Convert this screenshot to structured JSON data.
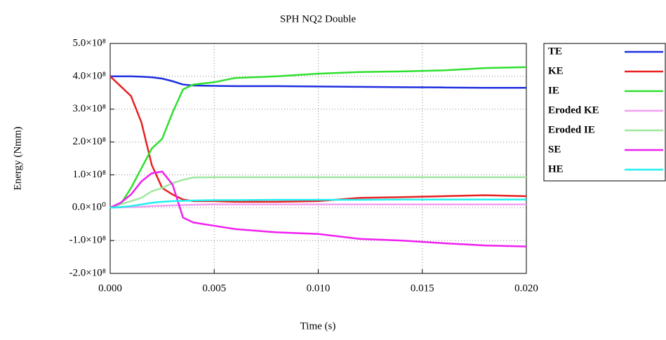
{
  "chart_data": {
    "type": "line",
    "title": "SPH NQ2 Double",
    "x_label": "Time (s)",
    "y_label": "Energy (Nmm)",
    "x": [
      0,
      0.0005,
      0.001,
      0.0015,
      0.002,
      0.0025,
      0.003,
      0.0035,
      0.004,
      0.005,
      0.006,
      0.008,
      0.01,
      0.012,
      0.014,
      0.016,
      0.018,
      0.02
    ],
    "series": [
      {
        "name": "TE",
        "color": "#1f2ee0",
        "values": [
          400000000.0,
          400000000.0,
          400000000.0,
          399000000.0,
          397000000.0,
          393000000.0,
          385000000.0,
          375000000.0,
          372000000.0,
          371000000.0,
          370000000.0,
          370000000.0,
          369000000.0,
          368000000.0,
          367000000.0,
          366000000.0,
          365000000.0,
          365000000.0
        ]
      },
      {
        "name": "KE",
        "color": "#e82020",
        "values": [
          400000000.0,
          370000000.0,
          340000000.0,
          260000000.0,
          130000000.0,
          60000000.0,
          40000000.0,
          25000000.0,
          20000000.0,
          20000000.0,
          18000000.0,
          18000000.0,
          20000000.0,
          30000000.0,
          32000000.0,
          35000000.0,
          38000000.0,
          35000000.0
        ]
      },
      {
        "name": "IE",
        "color": "#2ee02e",
        "values": [
          0,
          10000000.0,
          60000000.0,
          120000000.0,
          180000000.0,
          210000000.0,
          290000000.0,
          360000000.0,
          375000000.0,
          382000000.0,
          395000000.0,
          400000000.0,
          408000000.0,
          413000000.0,
          415000000.0,
          418000000.0,
          425000000.0,
          428000000.0
        ]
      },
      {
        "name": "Eroded KE",
        "color": "#f0a0f0",
        "values": [
          0,
          1000000.0,
          2000000.0,
          3000000.0,
          5000000.0,
          6000000.0,
          7000000.0,
          8000000.0,
          9000000.0,
          10000000.0,
          10000000.0,
          10000000.0,
          10000000.0,
          10000000.0,
          10000000.0,
          10000000.0,
          10000000.0,
          10000000.0
        ]
      },
      {
        "name": "Eroded IE",
        "color": "#a0e8a0",
        "values": [
          0,
          10000000.0,
          20000000.0,
          30000000.0,
          50000000.0,
          60000000.0,
          75000000.0,
          85000000.0,
          92000000.0,
          93000000.0,
          93000000.0,
          93000000.0,
          93000000.0,
          93000000.0,
          93000000.0,
          93000000.0,
          93000000.0,
          93000000.0
        ]
      },
      {
        "name": "SE",
        "color": "#f020f0",
        "values": [
          0,
          15000000.0,
          40000000.0,
          80000000.0,
          105000000.0,
          110000000.0,
          70000000.0,
          -30000000.0,
          -45000000.0,
          -55000000.0,
          -65000000.0,
          -75000000.0,
          -80000000.0,
          -95000000.0,
          -100000000.0,
          -108000000.0,
          -115000000.0,
          -118000000.0
        ]
      },
      {
        "name": "HE",
        "color": "#20f0f0",
        "values": [
          0,
          2000000.0,
          5000000.0,
          10000000.0,
          15000000.0,
          18000000.0,
          20000000.0,
          21000000.0,
          22000000.0,
          23000000.0,
          23000000.0,
          24000000.0,
          24000000.0,
          24000000.0,
          25000000.0,
          25000000.0,
          25000000.0,
          25000000.0
        ]
      }
    ],
    "xlim": [
      0,
      0.02
    ],
    "xticks": [
      {
        "value": 0,
        "label": "0.000"
      },
      {
        "value": 0.005,
        "label": "0.005"
      },
      {
        "value": 0.01,
        "label": "0.010"
      },
      {
        "value": 0.015,
        "label": "0.015"
      },
      {
        "value": 0.02,
        "label": "0.020"
      }
    ],
    "ylim": [
      -200000000.0,
      500000000.0
    ],
    "yticks": [
      {
        "value": -200000000.0,
        "label": "-2.0×10⁸"
      },
      {
        "value": -100000000.0,
        "label": "-1.0×10⁸"
      },
      {
        "value": 0,
        "label": "0.0×10⁰"
      },
      {
        "value": 100000000.0,
        "label": "1.0×10⁸"
      },
      {
        "value": 200000000.0,
        "label": "2.0×10⁸"
      },
      {
        "value": 300000000.0,
        "label": "3.0×10⁸"
      },
      {
        "value": 400000000.0,
        "label": "4.0×10⁸"
      },
      {
        "value": 500000000.0,
        "label": "5.0×10⁸"
      }
    ],
    "grid": true,
    "legend": "right"
  }
}
